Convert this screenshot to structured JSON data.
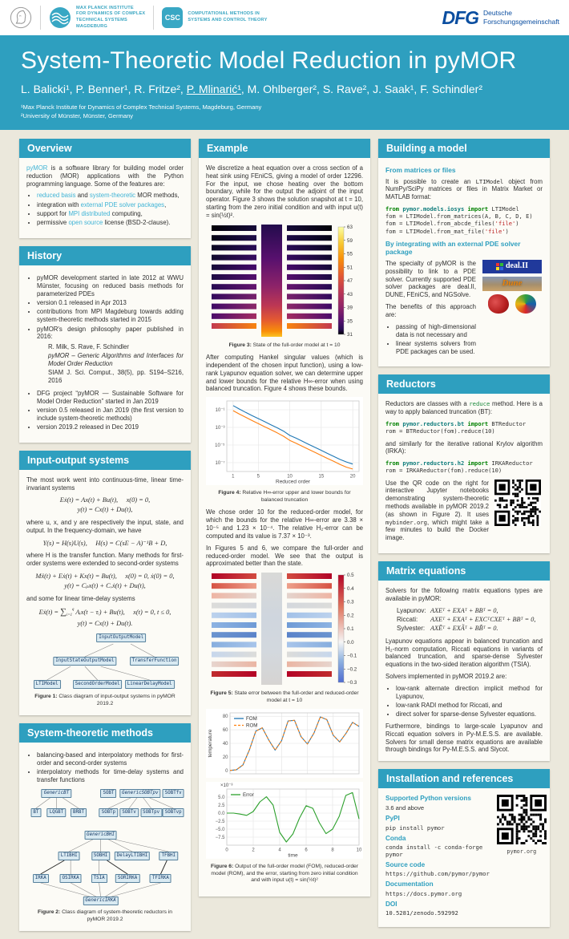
{
  "header": {
    "mpg_lines": [
      "MAX PLANCK INSTITUTE",
      "FOR DYNAMICS OF COMPLEX",
      "TECHNICAL SYSTEMS",
      "MAGDEBURG"
    ],
    "csc_abbr": "CSC",
    "csc_lines": [
      "COMPUTATIONAL METHODS IN",
      "SYSTEMS AND CONTROL THEORY"
    ],
    "dfg_abbr": "DFG",
    "dfg_lines": [
      "Deutsche",
      "Forschungsgemeinschaft"
    ]
  },
  "banner": {
    "title": "System-Theoretic Model Reduction in pyMOR",
    "authors_pre": "L. Balicki¹, P. Benner¹, R. Fritze², ",
    "authors_u": "P. Mlinarić¹",
    "authors_post": ", M. Ohlberger², S. Rave², J. Saak¹, F. Schindler²",
    "affil1": "¹Max Planck Institute for Dynamics of Complex Technical Systems, Magdeburg, Germany",
    "affil2": "²University of Münster, Münster, Germany"
  },
  "overview": {
    "heading": "Overview",
    "intro": [
      [
        "l",
        "pyMOR"
      ],
      [
        "p",
        " is a software library for building model order reduction (MOR) applications with the Python programming language. Some of the features are:"
      ]
    ],
    "bullets": [
      [
        [
          "l",
          "reduced basis"
        ],
        [
          "p",
          " and "
        ],
        [
          "l",
          "system-theoretic"
        ],
        [
          "p",
          " MOR methods,"
        ]
      ],
      [
        [
          "p",
          "integration with "
        ],
        [
          "l",
          "external PDE solver packages"
        ],
        [
          "p",
          ","
        ]
      ],
      [
        [
          "p",
          "support for "
        ],
        [
          "l",
          "MPI distributed"
        ],
        [
          "p",
          " computing,"
        ]
      ],
      [
        [
          "p",
          "permissive "
        ],
        [
          "l",
          "open source"
        ],
        [
          "p",
          " license (BSD-2-clause)."
        ]
      ]
    ]
  },
  "history": {
    "heading": "History",
    "b1": "pyMOR development started in late 2012 at WWU Münster, focusing on reduced basis methods for parameterized PDEs",
    "b2": "version 0.1 released in Apr 2013",
    "b3": "contributions from MPI Magdeburg towards adding system-theoretic methods started in 2015",
    "b4": "pyMOR's design philosophy paper published in 2016:",
    "cite1": "R. Milk, S. Rave, F. Schindler",
    "cite2": "pyMOR – Generic Algorithms and Interfaces for Model Order Reduction",
    "cite3": "SIAM J. Sci. Comput., 38(5), pp. S194–S216, 2016",
    "b5": "DFG project “pyMOR — Sustainable Software for Model Order Reduction” started in Jan 2019",
    "b6": "version 0.5 released in Jan 2019 (the first version to include system-theoretic methods)",
    "b7": "version 2019.2 released in Dec 2019"
  },
  "iosystems": {
    "heading": "Input-output systems",
    "p1": "The most work went into continuous-time, linear time-invariant systems",
    "eq1a": "Eẋ(t) = Ax(t) + Bu(t),  x(0) = 0,",
    "eq1b": "y(t) = Cx(t) + Du(t),",
    "p2": "where u, x, and y are respectively the input, state, and output. In the frequency-domain, we have",
    "eq2": "Y(s) = H(s)U(s),  H(s) = C(sE − A)⁻¹B + D,",
    "p3": "where H is the transfer function. Many methods for first-order systems were extended to second-order systems",
    "eq3a": "Mẍ(t) + Eẋ(t) + Kx(t) = Bu(t),  x(0) = 0, ẋ(0) = 0,",
    "eq3b": "y(t) = Cₚx(t) + Cᵥẋ(t) + Du(t),",
    "p4": "and some for linear time-delay systems",
    "eq4a": [
      [
        "p",
        "Eẋ(t) = "
      ],
      [
        "sum",
        "∑"
      ],
      [
        "sub",
        "i=1"
      ],
      [
        "sup",
        "q"
      ],
      [
        "p",
        " Aᵢx(t − τᵢ) + Bu(t),  x(t) = 0, t ≤ 0,"
      ]
    ],
    "eq4b": "y(t) = Cx(t) + Du(t).",
    "fig1_nodes": [
      "InputOutputModel",
      "InputStateOutputModel",
      "TransferFunction",
      "LTIModel",
      "SecondOrderModel",
      "LinearDelayModel"
    ],
    "fig1_cap_label": "Figure 1:",
    "fig1_cap": " Class diagram of input-output systems in pyMOR 2019.2"
  },
  "smethods": {
    "heading": "System-theoretic methods",
    "bullets": [
      [
        [
          "p",
          "balancing-based and interpolatory methods for first-order and second-order systems"
        ]
      ],
      [
        [
          "p",
          "interpolatory methods for time-delay systems and transfer functions"
        ]
      ]
    ],
    "fig2_nodes": [
      "GenericBT",
      "SOBT",
      "GenericSOBTpv",
      "SOBTfv",
      "BT",
      "LQGBT",
      "BRBT",
      "SOBTp",
      "SOBTv",
      "SOBTpv",
      "SOBTvp",
      "GenericBHI",
      "LTIBHI",
      "SOBHI",
      "DelayLTIBHI",
      "TFBHI",
      "IRKA",
      "OSIRKA",
      "TSIA",
      "SORIRKA",
      "TFIRKA",
      "GenericIRKA"
    ],
    "fig2_cap_label": "Figure 2:",
    "fig2_cap": " Class diagram of system-theoretic reductors in pyMOR 2019.2"
  },
  "example": {
    "heading": "Example",
    "p1": "We discretize a heat equation over a cross section of a heat sink using FEniCS, giving a model of order 12296. For the input, we chose heating over the bottom boundary, while for the output the adjoint of the input operator. Figure 3 shows the solution snapshot at t = 10, starting from the zero initial condition and with input u(t) = sin(½t)².",
    "fig3_cap_label": "Figure 3:",
    "fig3_cap": " State of the full-order model at t = 10",
    "p2": "After computing Hankel singular values (which is independent of the chosen input function), using a low-rank Lyapunov equation solver, we can determine upper and lower bounds for the relative H∞-error when using balanced truncation. Figure 4 shows these bounds.",
    "fig4_cap_label": "Figure 4:",
    "fig4_cap": " Relative H∞-error upper and lower bounds for balanced truncation",
    "p3": "We chose order 10 for the reduced-order model, for which the bounds for the relative H∞-error are 3.38 × 10⁻⁵ and 1.23 × 10⁻⁴. The relative H₂-error can be computed and its value is 7.37 × 10⁻³.",
    "p4": "In Figures 5 and 6, we compare the full-order and reduced-order model. We see that the output is approximated better than the state.",
    "fig5_cap_label": "Figure 5:",
    "fig5_cap": " State error between the full-order and reduced-order model at t = 10",
    "fig6_cap_label": "Figure 6:",
    "fig6_cap": " Output of the full-order model (FOM), reduced-order model (ROM), and the error, starting from zero initial condition and with input u(t) = sin(½t)²"
  },
  "building": {
    "heading": "Building a model",
    "sub1": "From matrices or files",
    "p1": [
      [
        "p",
        "It is possible to create an "
      ],
      [
        "c",
        "LTIModel"
      ],
      [
        "p",
        " object from NumPy/SciPy matrices or files in Matrix Market or MATLAB format:"
      ]
    ],
    "code1": [
      [
        [
          "k",
          "from "
        ],
        [
          "m",
          "pymor.models.iosys "
        ],
        [
          "k",
          "import "
        ],
        [
          "p",
          "LTIModel"
        ]
      ],
      [
        [
          "p",
          "fom = LTIModel.from_matrices(A, B, C, D, E)"
        ]
      ],
      [
        [
          "p",
          "fom = LTIModel.from_abcde_files("
        ],
        [
          "s",
          "'file'"
        ],
        [
          "p",
          ")"
        ]
      ],
      [
        [
          "p",
          "fom = LTIModel.from_mat_file("
        ],
        [
          "s",
          "'file'"
        ],
        [
          "p",
          ")"
        ]
      ]
    ],
    "sub2": "By integrating with an external PDE solver package",
    "p2": "The specialty of pyMOR is the possibility to link to a PDE solver.  Currently supported PDE solver packages are deal.II, DUNE, FEniCS, and NGSolve.",
    "p3": "The benefits of this approach are:",
    "bullets": [
      [
        [
          "p",
          "passing of high-dimensional data is not necessary and"
        ]
      ],
      [
        [
          "p",
          "linear systems solvers from PDE packages can be used."
        ]
      ]
    ],
    "logos": {
      "dealii": "deal.II",
      "dune": "Dune"
    }
  },
  "reductors": {
    "heading": "Reductors",
    "p1": [
      [
        "p",
        "Reductors are classes with a "
      ],
      [
        "cg",
        "reduce"
      ],
      [
        "p",
        " method. Here is a way to apply balanced truncation (BT):"
      ]
    ],
    "code1": [
      [
        [
          "k",
          "from "
        ],
        [
          "m",
          "pymor.reductors.bt "
        ],
        [
          "k",
          "import "
        ],
        [
          "p",
          "BTReductor"
        ]
      ],
      [
        [
          "p",
          "rom = BTReductor(fom).reduce(10)"
        ]
      ]
    ],
    "p2": "and similarly for the iterative rational Krylov algorithm (IRKA):",
    "code2": [
      [
        [
          "k",
          "from "
        ],
        [
          "m",
          "pymor.reductors.h2 "
        ],
        [
          "k",
          "import "
        ],
        [
          "p",
          "IRKAReductor"
        ]
      ],
      [
        [
          "p",
          "rom = IRKAReductor(fom).reduce(10)"
        ]
      ]
    ],
    "p3": [
      [
        "p",
        "Use the QR code on the right for interactive Jupyter notebooks demonstrating system-theoretic methods available in pyMOR 2019.2 (as shown in Figure 2).  It uses "
      ],
      [
        "c",
        "mybinder.org"
      ],
      [
        "p",
        ", which might take a few minutes to build the Docker image."
      ]
    ]
  },
  "matrixeq": {
    "heading": "Matrix equations",
    "p1": "Solvers for the following matrix equations types are available in pyMOR:",
    "lyap_label": "Lyapunov:",
    "lyap": "AXEᵀ + EXAᵀ + BBᵀ = 0,",
    "ricc_label": "Riccati:",
    "ricc": "AXEᵀ + EXAᵀ + EXCᵀCXEᵀ + BBᵀ = 0,",
    "sylv_label": "Sylvester:",
    "sylv": "AXẼᵀ + EXÃᵀ + BB̃ᵀ = 0.",
    "p2": "Lyapunov equations appear in balanced truncation and H₂-norm computation, Riccati equations in variants of balanced truncation, and sparse-dense Sylvester equations in the two-sided iteration algorithm (TSIA).",
    "p3": "Solvers implemented in pyMOR 2019.2 are:",
    "bullets": [
      [
        [
          "p",
          "low-rank alternate direction implicit method for Lyapunov,"
        ]
      ],
      [
        [
          "p",
          "low-rank RADI method for Riccati, and"
        ]
      ],
      [
        [
          "p",
          "direct solver for sparse-dense Sylvester equations."
        ]
      ]
    ],
    "p4": "Furthermore, bindings to large-scale Lyapunov and Riccati equation solvers in Py-M.E.S.S. are available.  Solvers for small dense matrix equations are available through bindings for Py-M.E.S.S. and Slycot."
  },
  "install": {
    "heading": "Installation and references",
    "items": [
      {
        "label": "Supported Python versions",
        "value": "3.6 and above"
      },
      {
        "label": "PyPI",
        "value": "pip install pymor"
      },
      {
        "label": "Conda",
        "value": "conda install -c conda-forge pymor"
      },
      {
        "label": "Source code",
        "value": "https://github.com/pymor/pymor"
      },
      {
        "label": "Documentation",
        "value": "https://docs.pymor.org"
      },
      {
        "label": "DOI",
        "value": "10.5281/zenodo.592992"
      }
    ],
    "qr_caption": "pymor.org"
  },
  "chart_data": [
    {
      "id": "fig4",
      "type": "line",
      "log_y": true,
      "x": [
        1,
        2,
        3,
        4,
        5,
        6,
        7,
        8,
        9,
        10,
        11,
        12,
        13,
        14,
        15,
        16,
        17,
        18,
        19,
        20
      ],
      "series": [
        {
          "name": "upper bound",
          "color": "#1f77b4",
          "values": [
            0.3,
            0.12,
            0.05,
            0.022,
            0.01,
            0.0045,
            0.002,
            0.0009,
            0.00038,
            0.000123,
            6e-05,
            2.7e-05,
            1.2e-05,
            5.5e-06,
            2.5e-06,
            1.1e-06,
            5e-07,
            2.3e-07,
            1.2e-07,
            7e-08
          ]
        },
        {
          "name": "lower bound",
          "color": "#ff7f0e",
          "values": [
            0.08,
            0.032,
            0.014,
            0.006,
            0.0027,
            0.0012,
            0.00055,
            0.00024,
            0.0001,
            3.38e-05,
            1.6e-05,
            7.2e-06,
            3.2e-06,
            1.5e-06,
            6.6e-07,
            3e-07,
            1.4e-07,
            6.2e-08,
            3.1e-08,
            1.9e-08
          ]
        }
      ],
      "xlabel": "Reduced order",
      "xticks": [
        1,
        5,
        10,
        15,
        20
      ],
      "xlim": [
        0,
        21
      ],
      "ylim": [
        1e-08,
        1
      ],
      "yticks": [
        0.1,
        0.001,
        1e-05,
        1e-07
      ],
      "ytick_labels": [
        "10⁻¹",
        "10⁻³",
        "10⁻⁵",
        "10⁻⁷"
      ]
    },
    {
      "id": "fig6a",
      "type": "line",
      "x": [
        0,
        0.5,
        1,
        1.5,
        2,
        2.5,
        3,
        3.5,
        4,
        4.5,
        5,
        5.5,
        6,
        6.5,
        7,
        7.5,
        8,
        8.5,
        9,
        9.5,
        10
      ],
      "series": [
        {
          "name": "FOM",
          "color": "#1f77b4",
          "values": [
            0,
            1,
            8,
            30,
            58,
            63,
            45,
            30,
            44,
            73,
            74,
            50,
            39,
            55,
            79,
            75,
            52,
            42,
            55,
            71,
            65
          ]
        },
        {
          "name": "ROM",
          "color": "#ff7f0e",
          "dash": "3,2",
          "values": [
            0,
            1,
            8,
            30,
            58,
            63,
            45,
            30,
            44,
            73,
            74,
            50,
            39,
            55,
            79,
            75,
            52,
            42,
            55,
            71,
            65
          ]
        }
      ],
      "ylabel": "temperature",
      "xlim": [
        0,
        10
      ],
      "ylim": [
        -5,
        85
      ],
      "yticks": [
        0,
        20,
        40,
        60,
        80
      ],
      "xticks": [
        0,
        2,
        4,
        6,
        8,
        10
      ],
      "hide_x_labels": true,
      "legend": true
    },
    {
      "id": "fig6b",
      "type": "line",
      "x": [
        0,
        0.5,
        1,
        1.5,
        2,
        2.5,
        3,
        3.5,
        4,
        4.5,
        5,
        5.5,
        6,
        6.5,
        7,
        7.5,
        8,
        8.5,
        9,
        9.5,
        10
      ],
      "series": [
        {
          "name": "Error",
          "color": "#2ca02c",
          "values": [
            0,
            0,
            -0.3,
            -0.7,
            0.5,
            3.5,
            5.1,
            2.5,
            -6.0,
            -9.0,
            -6.5,
            -1.5,
            2.3,
            1.5,
            -3.0,
            -6.4,
            -5.0,
            -1.0,
            5.5,
            6.4,
            -1.8
          ]
        }
      ],
      "xlabel": "time",
      "offset_label": "×10⁻³",
      "xlim": [
        0,
        10
      ],
      "ylim": [
        -10,
        7.5
      ],
      "yticks": [
        5.0,
        2.5,
        0.0,
        -2.5,
        -5.0,
        -7.5
      ],
      "ytick_labels": [
        "5.0",
        "2.5",
        "0.0",
        "−2.5",
        "−5.0",
        "−7.5"
      ],
      "xticks": [
        0,
        2,
        4,
        6,
        8,
        10
      ],
      "legend": true
    },
    {
      "id": "fig3",
      "type": "heatmap",
      "colormap": "inferno",
      "colorbar_ticks": [
        "63",
        "59",
        "55",
        "51",
        "47",
        "43",
        "39",
        "35",
        "31"
      ]
    },
    {
      "id": "fig5",
      "type": "heatmap",
      "colormap": "coolwarm",
      "colorbar_ticks": [
        "0.5",
        "0.4",
        "0.3",
        "0.2",
        "0.1",
        "0.0",
        "−0.1",
        "−0.2",
        "−0.3"
      ]
    }
  ]
}
